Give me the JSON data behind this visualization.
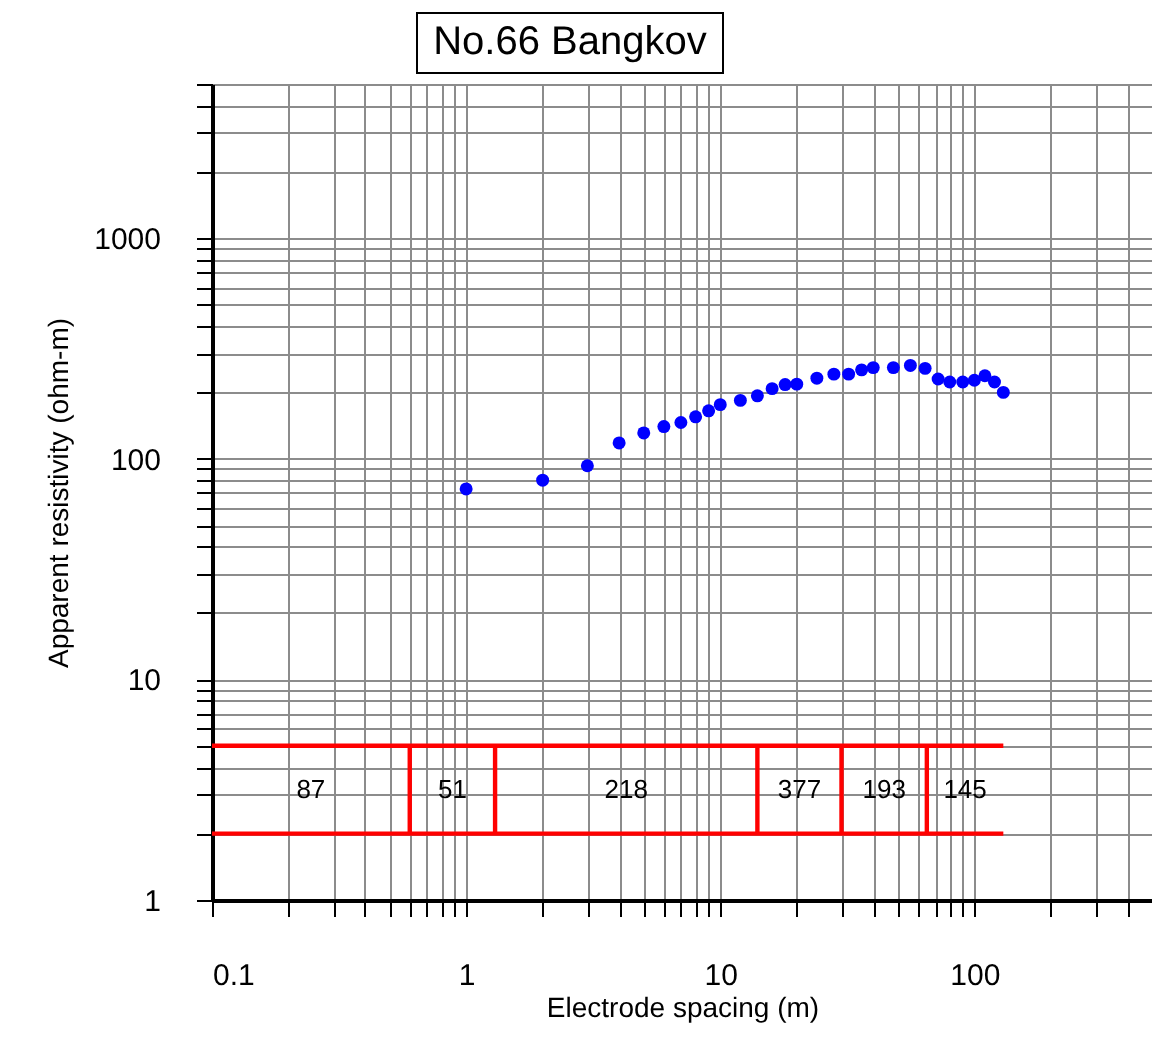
{
  "chart_data": {
    "type": "scatter",
    "title": "No.66 Bangkov",
    "xlabel": "Electrode spacing (m)",
    "ylabel": "Apparent resistivity (ohm-m)",
    "log": "xy",
    "grid": true,
    "xlim": [
      0.1,
      500
    ],
    "ylim": [
      1,
      5000
    ],
    "xticks": [
      0.1,
      {
        "value": 0.2,
        "label": null
      },
      {
        "value": 0.3,
        "label": null
      },
      {
        "value": 0.4,
        "label": null
      },
      {
        "value": 0.5,
        "label": null
      },
      {
        "value": 0.6,
        "label": null
      },
      {
        "value": 0.7,
        "label": null
      },
      {
        "value": 0.8,
        "label": null
      },
      {
        "value": 0.9,
        "label": null
      },
      1,
      {
        "value": 2,
        "label": null
      },
      {
        "value": 3,
        "label": null
      },
      {
        "value": 4,
        "label": null
      },
      {
        "value": 5,
        "label": null
      },
      {
        "value": 6,
        "label": null
      },
      {
        "value": 7,
        "label": null
      },
      {
        "value": 8,
        "label": null
      },
      {
        "value": 9,
        "label": null
      },
      10,
      {
        "value": 20,
        "label": null
      },
      {
        "value": 30,
        "label": null
      },
      {
        "value": 40,
        "label": null
      },
      {
        "value": 50,
        "label": null
      },
      {
        "value": 60,
        "label": null
      },
      {
        "value": 70,
        "label": null
      },
      {
        "value": 80,
        "label": null
      },
      {
        "value": 90,
        "label": null
      },
      100,
      {
        "value": 200,
        "label": null
      },
      {
        "value": 300,
        "label": null
      },
      {
        "value": 400,
        "label": null
      }
    ],
    "yticks": [
      1,
      {
        "value": 2,
        "label": null
      },
      {
        "value": 3,
        "label": null
      },
      {
        "value": 4,
        "label": null
      },
      {
        "value": 5,
        "label": null
      },
      {
        "value": 6,
        "label": null
      },
      {
        "value": 7,
        "label": null
      },
      {
        "value": 8,
        "label": null
      },
      {
        "value": 9,
        "label": null
      },
      10,
      {
        "value": 20,
        "label": null
      },
      {
        "value": 30,
        "label": null
      },
      {
        "value": 40,
        "label": null
      },
      {
        "value": 50,
        "label": null
      },
      {
        "value": 60,
        "label": null
      },
      {
        "value": 70,
        "label": null
      },
      {
        "value": 80,
        "label": null
      },
      {
        "value": 90,
        "label": null
      },
      100,
      {
        "value": 200,
        "label": null
      },
      {
        "value": 300,
        "label": null
      },
      {
        "value": 400,
        "label": null
      },
      {
        "value": 500,
        "label": null
      },
      {
        "value": 600,
        "label": null
      },
      {
        "value": 700,
        "label": null
      },
      {
        "value": 800,
        "label": null
      },
      {
        "value": 900,
        "label": null
      },
      1000,
      {
        "value": 2000,
        "label": null
      },
      {
        "value": 3000,
        "label": null
      },
      {
        "value": 4000,
        "label": null
      },
      {
        "value": 5000,
        "label": null
      }
    ],
    "series": [
      {
        "marker": "circle",
        "color": "#0000ff",
        "x": [
          1,
          2,
          3,
          4,
          5,
          6,
          7,
          8,
          9,
          10,
          12,
          14,
          16,
          18,
          20,
          24,
          28,
          32,
          36,
          40,
          48,
          56,
          64,
          72,
          80,
          90,
          100,
          110,
          120,
          130
        ],
        "values": [
          73,
          80,
          93,
          118,
          131,
          140,
          146,
          155,
          165,
          176,
          184,
          193,
          208,
          217,
          218,
          232,
          242,
          242,
          253,
          259,
          259,
          265,
          257,
          230,
          223,
          223,
          227,
          238,
          223,
          200
        ]
      },
      {
        "type": "line",
        "color": "#ff0000",
        "x": [
          0.1,
          130
        ],
        "values": [
          5,
          5
        ]
      },
      {
        "type": "line",
        "color": "#ff0000",
        "x": [
          0.1,
          130
        ],
        "values": [
          2,
          2
        ]
      },
      {
        "type": "line",
        "color": "#ff0000",
        "x": [
          0.6,
          0.6
        ],
        "values": [
          2,
          5
        ]
      },
      {
        "type": "line",
        "color": "#ff0000",
        "x": [
          1.3,
          1.3
        ],
        "values": [
          2,
          5
        ]
      },
      {
        "type": "line",
        "color": "#ff0000",
        "x": [
          14,
          14
        ],
        "values": [
          2,
          5
        ]
      },
      {
        "type": "line",
        "color": "#ff0000",
        "x": [
          30,
          30
        ],
        "values": [
          2,
          5
        ]
      },
      {
        "type": "line",
        "color": "#ff0000",
        "x": [
          65,
          65
        ],
        "values": [
          2,
          5
        ]
      }
    ],
    "annotations": [
      "87",
      "51",
      "218",
      "377",
      "193",
      "145"
    ]
  }
}
